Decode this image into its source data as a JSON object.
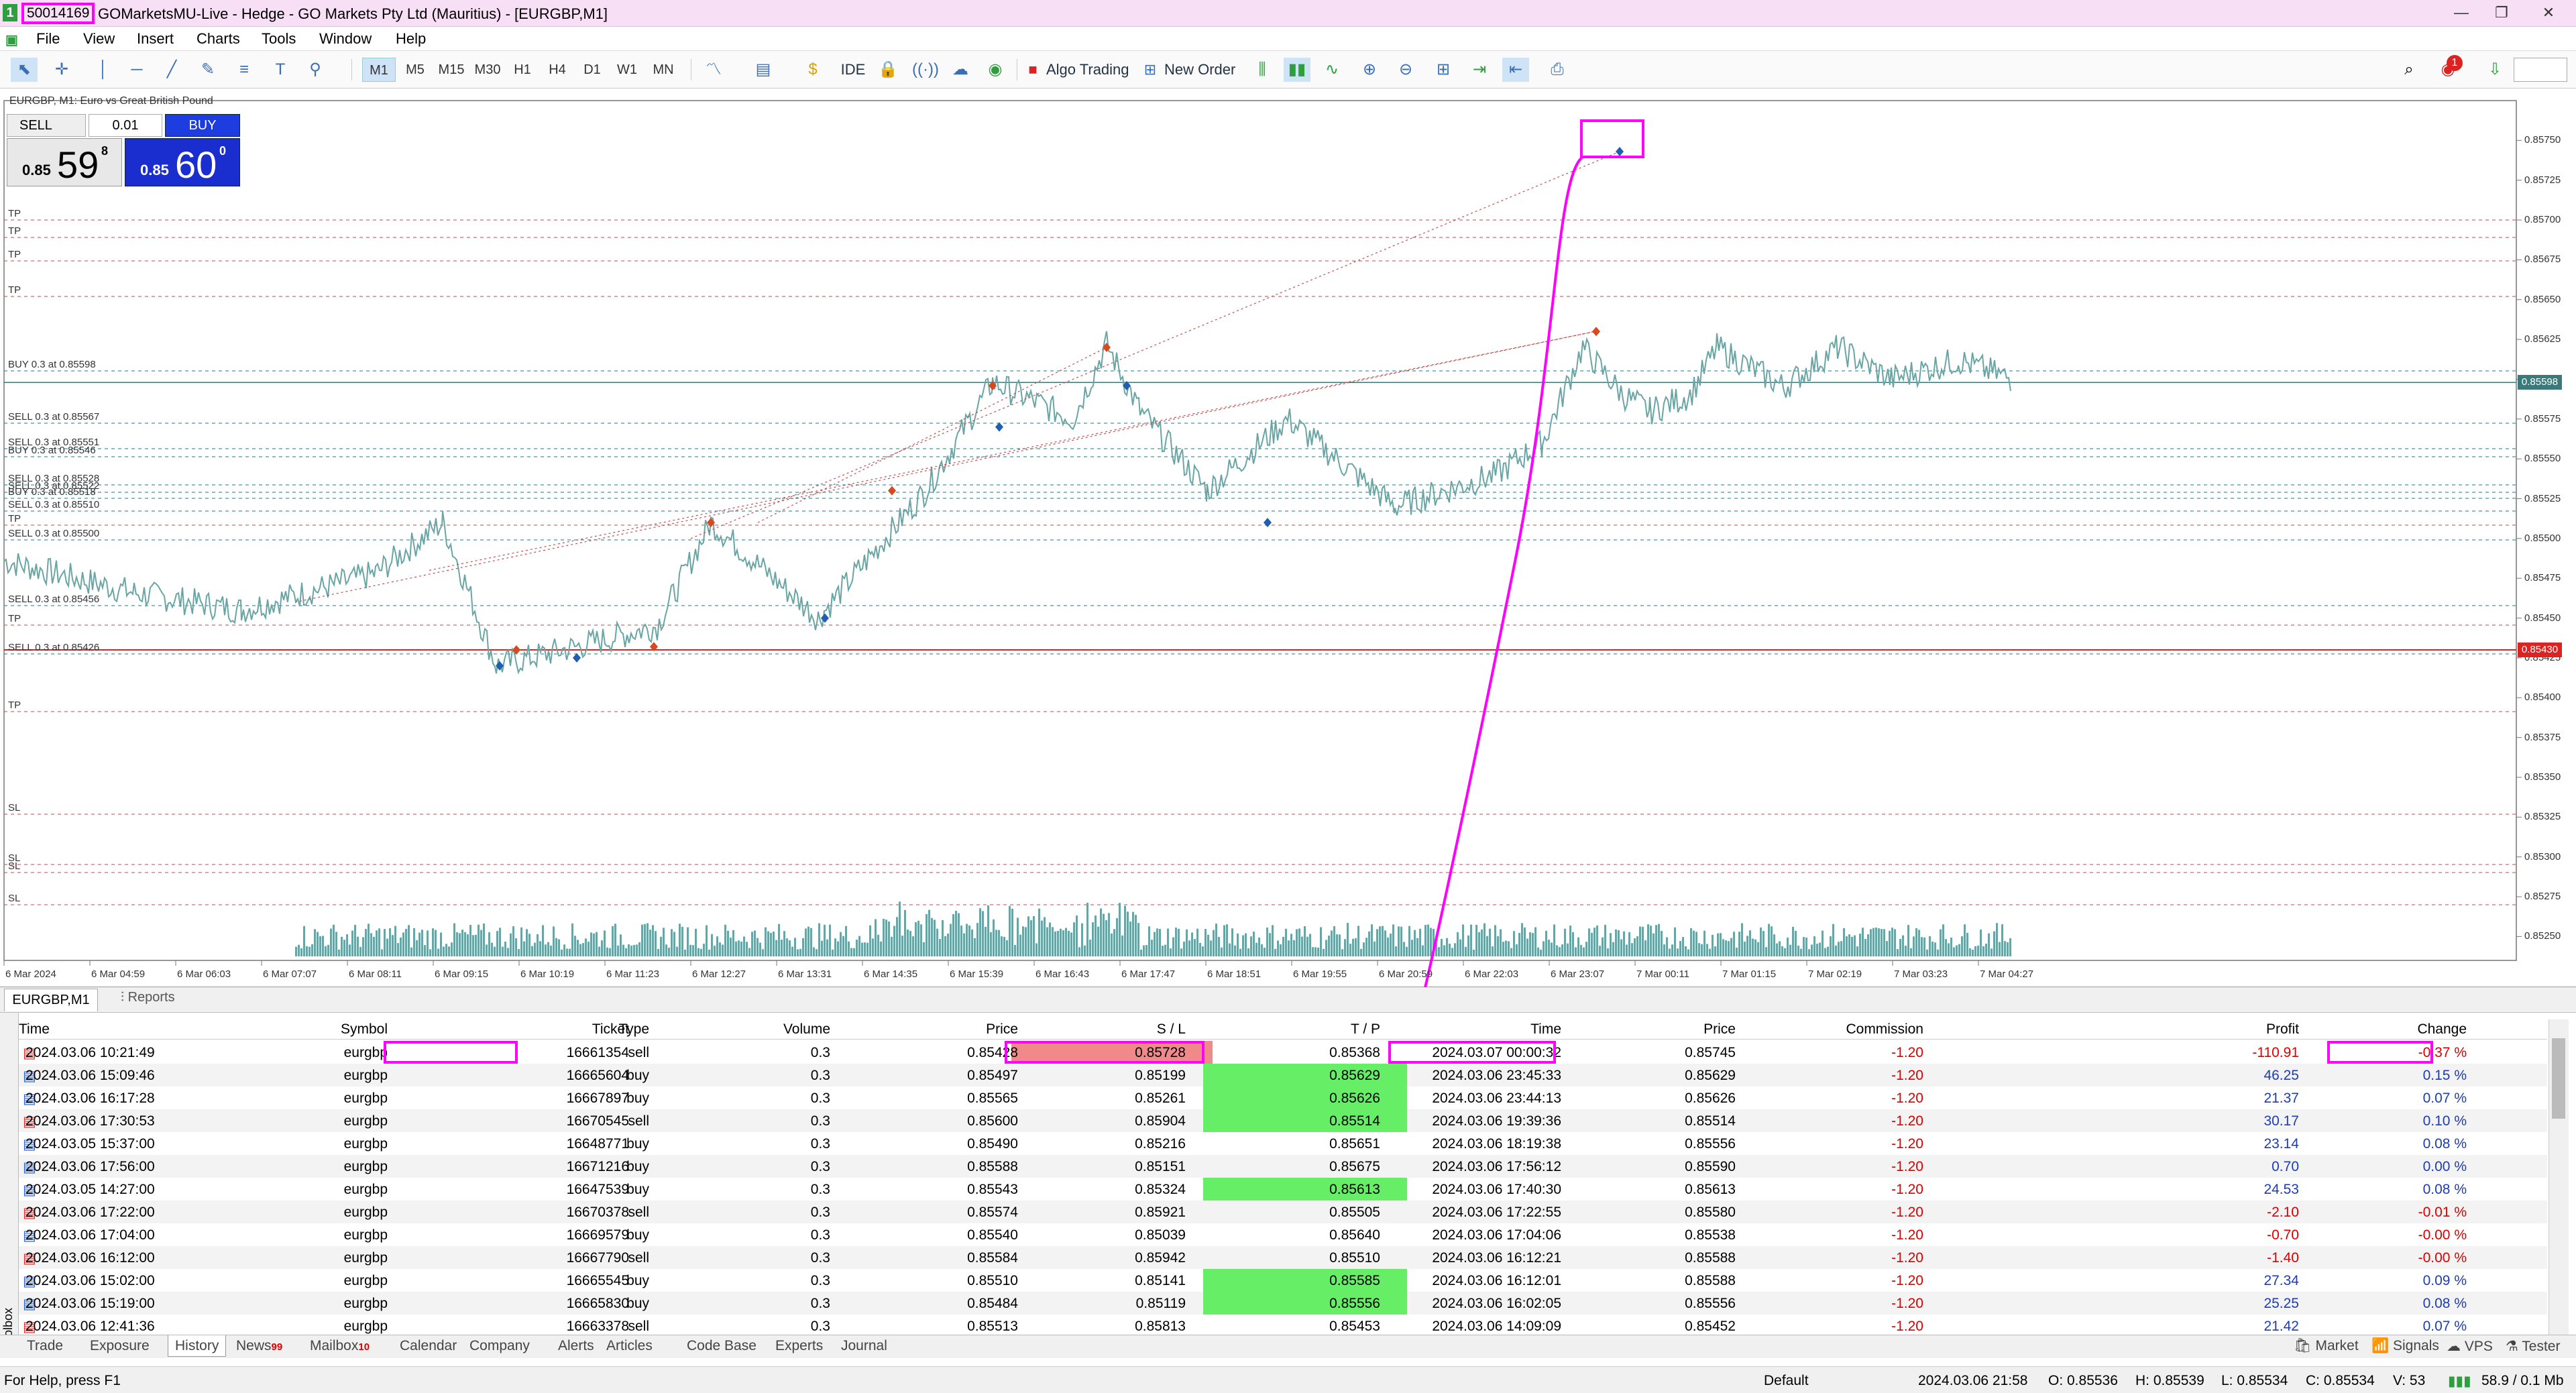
{
  "window": {
    "account": "50014169",
    "title": "GOMarketsMU-Live - Hedge - GO Markets Pty Ltd (Mauritius) - [EURGBP,M1]",
    "minimize": "—",
    "restore": "❐",
    "close": "✕"
  },
  "menu": [
    "File",
    "View",
    "Insert",
    "Charts",
    "Tools",
    "Window",
    "Help"
  ],
  "toolbar": {
    "timeframes": [
      "M1",
      "M5",
      "M15",
      "M30",
      "H1",
      "H4",
      "D1",
      "W1",
      "MN"
    ],
    "active_timeframe": "M1",
    "ide": "IDE",
    "algo_trading": "Algo Trading",
    "new_order": "New Order",
    "notification_count": "1"
  },
  "chart": {
    "symbol_title": "EURGBP, M1:  Euro vs Great British Pound",
    "one_click": {
      "sell": "SELL",
      "buy": "BUY",
      "lots": "0.01",
      "sell_small": "0.85",
      "sell_big": "59",
      "sell_sup": "8",
      "buy_small": "0.85",
      "buy_big": "60",
      "buy_sup": "0"
    },
    "price_axis": [
      "0.85750",
      "0.85725",
      "0.85700",
      "0.85675",
      "0.85650",
      "0.85625",
      "0.85600",
      "0.85575",
      "0.85550",
      "0.85525",
      "0.85500",
      "0.85475",
      "0.85450",
      "0.85425",
      "0.85400",
      "0.85375",
      "0.85350",
      "0.85325",
      "0.85300",
      "0.85275",
      "0.85250"
    ],
    "current_price_label": "0.85598",
    "red_price_label": "0.85430",
    "time_axis": [
      "6 Mar 2024",
      "6 Mar 04:59",
      "6 Mar 06:03",
      "6 Mar 07:07",
      "6 Mar 08:11",
      "6 Mar 09:15",
      "6 Mar 10:19",
      "6 Mar 11:23",
      "6 Mar 12:27",
      "6 Mar 13:31",
      "6 Mar 14:35",
      "6 Mar 15:39",
      "6 Mar 16:43",
      "6 Mar 17:47",
      "6 Mar 18:51",
      "6 Mar 19:55",
      "6 Mar 20:59",
      "6 Mar 22:03",
      "6 Mar 23:07",
      "7 Mar 00:11",
      "7 Mar 01:15",
      "7 Mar 02:19",
      "7 Mar 03:23",
      "7 Mar 04:27"
    ],
    "order_lines": [
      {
        "label": "TP"
      },
      {
        "label": "TP"
      },
      {
        "label": "TP"
      },
      {
        "label": "TP"
      },
      {
        "label": "BUY 0.3 at 0.85598"
      },
      {
        "label": "SELL 0.3 at 0.85567"
      },
      {
        "label": "SELL 0.3 at 0.85551"
      },
      {
        "label": "BUY 0.3 at 0.85546"
      },
      {
        "label": "SELL 0.3 at 0.85528"
      },
      {
        "label": "SELL 0.3 at 0.85522"
      },
      {
        "label": "BUY 0.3 at 0.85518"
      },
      {
        "label": "SELL 0.3 at 0.85510"
      },
      {
        "label": "TP"
      },
      {
        "label": "SELL 0.3 at 0.85500"
      },
      {
        "label": "SELL 0.3 at 0.85456"
      },
      {
        "label": "TP"
      },
      {
        "label": "SELL 0.3 at 0.85426"
      },
      {
        "label": "TP"
      },
      {
        "label": "SL"
      },
      {
        "label": "SL"
      },
      {
        "label": "SL"
      },
      {
        "label": "SL"
      }
    ]
  },
  "bottom_tabs": {
    "chart_tab": "EURGBP,M1",
    "reports": "Reports"
  },
  "history": {
    "columns": [
      "Time",
      "Symbol",
      "Ticket",
      "Type",
      "Volume",
      "Price",
      "S / L",
      "T / P",
      "Time",
      "Price",
      "Commission",
      "Profit",
      "Change"
    ],
    "rows": [
      [
        "2024.03.06 10:21:49",
        "eurgbp",
        "16661354",
        "sell",
        "0.3",
        "0.85428",
        "0.85728",
        "0.85368",
        "2024.03.07 00:00:32",
        "0.85745",
        "-1.20",
        "-110.91",
        "-0.37 %"
      ],
      [
        "2024.03.06 15:09:46",
        "eurgbp",
        "16665604",
        "buy",
        "0.3",
        "0.85497",
        "0.85199",
        "0.85629",
        "2024.03.06 23:45:33",
        "0.85629",
        "-1.20",
        "46.25",
        "0.15 %"
      ],
      [
        "2024.03.06 16:17:28",
        "eurgbp",
        "16667897",
        "buy",
        "0.3",
        "0.85565",
        "0.85261",
        "0.85626",
        "2024.03.06 23:44:13",
        "0.85626",
        "-1.20",
        "21.37",
        "0.07 %"
      ],
      [
        "2024.03.06 17:30:53",
        "eurgbp",
        "16670545",
        "sell",
        "0.3",
        "0.85600",
        "0.85904",
        "0.85514",
        "2024.03.06 19:39:36",
        "0.85514",
        "-1.20",
        "30.17",
        "0.10 %"
      ],
      [
        "2024.03.05 15:37:00",
        "eurgbp",
        "16648771",
        "buy",
        "0.3",
        "0.85490",
        "0.85216",
        "0.85651",
        "2024.03.06 18:19:38",
        "0.85556",
        "-1.20",
        "23.14",
        "0.08 %"
      ],
      [
        "2024.03.06 17:56:00",
        "eurgbp",
        "16671216",
        "buy",
        "0.3",
        "0.85588",
        "0.85151",
        "0.85675",
        "2024.03.06 17:56:12",
        "0.85590",
        "-1.20",
        "0.70",
        "0.00 %"
      ],
      [
        "2024.03.05 14:27:00",
        "eurgbp",
        "16647539",
        "buy",
        "0.3",
        "0.85543",
        "0.85324",
        "0.85613",
        "2024.03.06 17:40:30",
        "0.85613",
        "-1.20",
        "24.53",
        "0.08 %"
      ],
      [
        "2024.03.06 17:22:00",
        "eurgbp",
        "16670378",
        "sell",
        "0.3",
        "0.85574",
        "0.85921",
        "0.85505",
        "2024.03.06 17:22:55",
        "0.85580",
        "-1.20",
        "-2.10",
        "-0.01 %"
      ],
      [
        "2024.03.06 17:04:00",
        "eurgbp",
        "16669579",
        "buy",
        "0.3",
        "0.85540",
        "0.85039",
        "0.85640",
        "2024.03.06 17:04:06",
        "0.85538",
        "-1.20",
        "-0.70",
        "-0.00 %"
      ],
      [
        "2024.03.06 16:12:00",
        "eurgbp",
        "16667790",
        "sell",
        "0.3",
        "0.85584",
        "0.85942",
        "0.85510",
        "2024.03.06 16:12:21",
        "0.85588",
        "-1.20",
        "-1.40",
        "-0.00 %"
      ],
      [
        "2024.03.06 15:02:00",
        "eurgbp",
        "16665545",
        "buy",
        "0.3",
        "0.85510",
        "0.85141",
        "0.85585",
        "2024.03.06 16:12:01",
        "0.85588",
        "-1.20",
        "27.34",
        "0.09 %"
      ],
      [
        "2024.03.06 15:19:00",
        "eurgbp",
        "16665830",
        "buy",
        "0.3",
        "0.85484",
        "0.85119",
        "0.85556",
        "2024.03.06 16:02:05",
        "0.85556",
        "-1.20",
        "25.25",
        "0.08 %"
      ],
      [
        "2024.03.06 12:41:36",
        "eurgbp",
        "16663378",
        "sell",
        "0.3",
        "0.85513",
        "0.85813",
        "0.85453",
        "2024.03.06 14:09:09",
        "0.85452",
        "-1.20",
        "21.42",
        "0.07 %"
      ]
    ],
    "tp_hit_rows": [
      1,
      2,
      3,
      6,
      10,
      11
    ],
    "sl_hit_rows": [
      0
    ]
  },
  "toolbox_label": "Toolbox",
  "toolbox_tabs": [
    {
      "label": "Trade",
      "badge": ""
    },
    {
      "label": "Exposure",
      "badge": ""
    },
    {
      "label": "History",
      "badge": ""
    },
    {
      "label": "News",
      "badge": "99"
    },
    {
      "label": "Mailbox",
      "badge": "10"
    },
    {
      "label": "Calendar",
      "badge": ""
    },
    {
      "label": "Company",
      "badge": ""
    },
    {
      "label": "Alerts",
      "badge": ""
    },
    {
      "label": "Articles",
      "badge": ""
    },
    {
      "label": "Code Base",
      "badge": ""
    },
    {
      "label": "Experts",
      "badge": ""
    },
    {
      "label": "Journal",
      "badge": ""
    }
  ],
  "toolbox_right": {
    "market": "Market",
    "signals": "Signals",
    "vps": "VPS",
    "tester": "Tester"
  },
  "status": {
    "help": "For Help, press F1",
    "profile": "Default",
    "datetime": "2024.03.06 21:58",
    "open": "O: 0.85536",
    "high": "H: 0.85539",
    "low": "L: 0.85534",
    "close": "C: 0.85534",
    "volume": "V: 53",
    "traffic": "58.9 / 0.1 Mb"
  },
  "colors": {
    "highlight": "#ff00ff",
    "price_line": "#3a7a7a",
    "candle": "#6aa5a5",
    "sl_fill": "#f08a8a",
    "tp_fill": "#66ee66",
    "buy_blue": "#1d3de0",
    "red_line": "#dd2222"
  }
}
